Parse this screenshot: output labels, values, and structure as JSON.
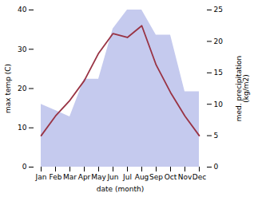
{
  "chart_data": {
    "type": "line",
    "xlabel": "date (month)",
    "ylabel": "max temp (C)",
    "y2label": "med. precipitation\n(kg/m2)",
    "categories": [
      "Jan",
      "Feb",
      "Mar",
      "Apr",
      "May",
      "Jun",
      "Jul",
      "Aug",
      "Sep",
      "Oct",
      "Nov",
      "Dec"
    ],
    "series": [
      {
        "type": "area",
        "axis": "y2",
        "color": "#c5caee",
        "values": [
          10,
          9,
          8,
          14,
          14,
          22,
          25,
          25,
          21,
          21,
          12,
          12
        ]
      },
      {
        "type": "line",
        "color": "#993344",
        "values": [
          8,
          13,
          17,
          22,
          29,
          34,
          33,
          36,
          26,
          19,
          13,
          8
        ]
      }
    ],
    "ylim": [
      0,
      40
    ],
    "yticks": [
      0,
      10,
      20,
      30,
      40
    ],
    "y2lim": [
      0,
      25
    ],
    "y2ticks": [
      0,
      5,
      10,
      15,
      20,
      25
    ],
    "grid": false
  }
}
